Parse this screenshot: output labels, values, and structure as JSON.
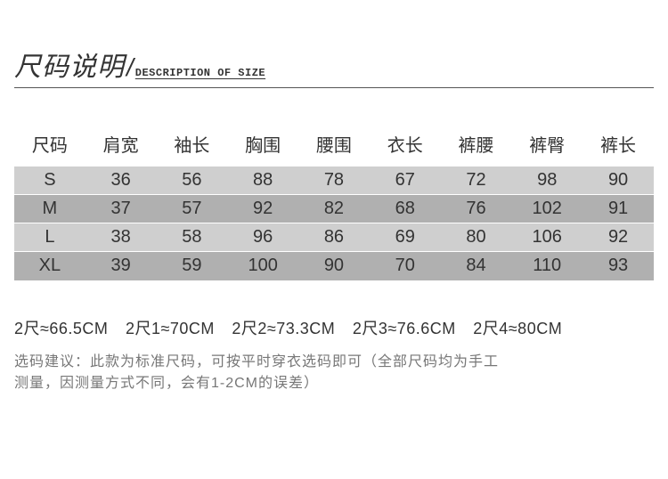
{
  "title": {
    "cn": "尺码说明",
    "slash": "/",
    "en": "DESCRIPTION OF SIZE"
  },
  "table": {
    "columns": [
      "尺码",
      "肩宽",
      "袖长",
      "胸围",
      "腰围",
      "衣长",
      "裤腰",
      "裤臀",
      "裤长"
    ],
    "rows": [
      [
        "S",
        "36",
        "56",
        "88",
        "78",
        "67",
        "72",
        "98",
        "90"
      ],
      [
        "M",
        "37",
        "57",
        "92",
        "82",
        "68",
        "76",
        "102",
        "91"
      ],
      [
        "L",
        "38",
        "58",
        "96",
        "86",
        "69",
        "80",
        "106",
        "92"
      ],
      [
        "XL",
        "39",
        "59",
        "100",
        "90",
        "70",
        "84",
        "110",
        "93"
      ]
    ],
    "row_backgrounds": [
      "#cfcfcf",
      "#b0b0b0",
      "#cfcfcf",
      "#b0b0b0"
    ],
    "header_fontsize": 20,
    "cell_fontsize": 20
  },
  "conversion": {
    "items": [
      "2尺≈66.5CM",
      "2尺1≈70CM",
      "2尺2≈73.3CM",
      "2尺3≈76.6CM",
      "2尺4≈80CM"
    ]
  },
  "note": {
    "line1": "选码建议：此款为标准尺码，可按平时穿衣选码即可（全部尺码均为手工",
    "line2": "测量，因测量方式不同，会有1-2CM的误差）"
  },
  "colors": {
    "text": "#333333",
    "note_text": "#777777",
    "row_light": "#cfcfcf",
    "row_dark": "#b0b0b0",
    "background": "#ffffff"
  }
}
